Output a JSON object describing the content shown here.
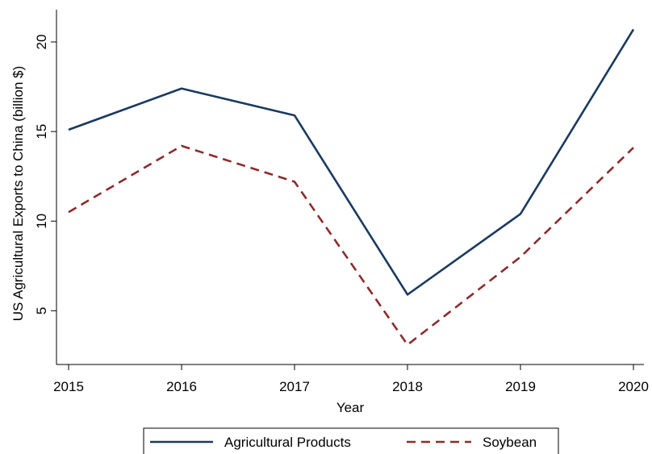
{
  "chart_data": {
    "type": "line",
    "title": "",
    "xlabel": "Year",
    "ylabel": "US Agricultural Exports to China (billion $)",
    "x": [
      2015,
      2016,
      2017,
      2018,
      2019,
      2020
    ],
    "x_ticks": [
      "2015",
      "2016",
      "2017",
      "2018",
      "2019",
      "2020"
    ],
    "y_ticks": [
      "5",
      "10",
      "15",
      "20"
    ],
    "y_tick_values": [
      5,
      10,
      15,
      20
    ],
    "ylim": [
      2.0,
      21.8
    ],
    "xlim": [
      2015,
      2020
    ],
    "grid": false,
    "legend_position": "bottom",
    "series": [
      {
        "name": "Agricultural Products",
        "values": [
          15.1,
          17.4,
          15.9,
          5.9,
          10.4,
          20.7
        ],
        "color": "#1a3a5f",
        "dash": "solid"
      },
      {
        "name": "Soybean",
        "values": [
          10.5,
          14.2,
          12.2,
          3.1,
          8.0,
          14.1
        ],
        "color": "#8b2c2c",
        "dash": "dashed"
      }
    ]
  }
}
